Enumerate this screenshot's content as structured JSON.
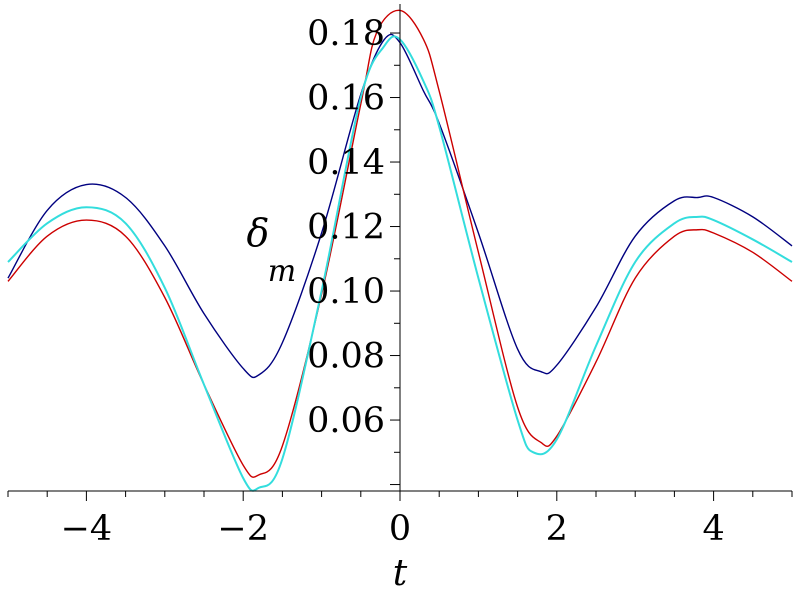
{
  "chart_data": {
    "type": "line",
    "title": "",
    "xlabel": "t",
    "ylabel_symbol": "δ",
    "ylabel_subscript": "m",
    "xlim": [
      -5,
      5
    ],
    "ylim": [
      0.038,
      0.189
    ],
    "x_ticks": [
      -4,
      -2,
      0,
      2,
      4
    ],
    "x_tick_labels": [
      "−4",
      "−2",
      "0",
      "2",
      "4"
    ],
    "y_ticks": [
      0.06,
      0.08,
      0.1,
      0.12,
      0.14,
      0.16,
      0.18
    ],
    "y_tick_labels": [
      "0.06",
      "0.08",
      "0.10",
      "0.12",
      "0.14",
      "0.16",
      "0.18"
    ],
    "grid": false,
    "legend": "none",
    "series": [
      {
        "color": "#000080",
        "points": [
          [
            -5,
            0.104
          ],
          [
            -4.5,
            0.125
          ],
          [
            -4,
            0.133
          ],
          [
            -3.5,
            0.129
          ],
          [
            -3,
            0.114
          ],
          [
            -2.5,
            0.093
          ],
          [
            -2,
            0.076
          ],
          [
            -1.8,
            0.074
          ],
          [
            -1.5,
            0.084
          ],
          [
            -1,
            0.118
          ],
          [
            -0.5,
            0.161
          ],
          [
            -0.2,
            0.178
          ],
          [
            0,
            0.177
          ],
          [
            0.3,
            0.162
          ],
          [
            0.5,
            0.152
          ],
          [
            1,
            0.118
          ],
          [
            1.5,
            0.082
          ],
          [
            1.8,
            0.075
          ],
          [
            2,
            0.077
          ],
          [
            2.5,
            0.095
          ],
          [
            3,
            0.117
          ],
          [
            3.5,
            0.128
          ],
          [
            3.8,
            0.129
          ],
          [
            4,
            0.129
          ],
          [
            4.5,
            0.123
          ],
          [
            5,
            0.114
          ]
        ]
      },
      {
        "color": "#cc0000",
        "points": [
          [
            -5,
            0.103
          ],
          [
            -4.5,
            0.117
          ],
          [
            -4,
            0.122
          ],
          [
            -3.5,
            0.117
          ],
          [
            -3,
            0.098
          ],
          [
            -2.5,
            0.071
          ],
          [
            -2,
            0.046
          ],
          [
            -1.8,
            0.043
          ],
          [
            -1.5,
            0.052
          ],
          [
            -1,
            0.099
          ],
          [
            -0.5,
            0.158
          ],
          [
            -0.3,
            0.18
          ],
          [
            0,
            0.187
          ],
          [
            0.3,
            0.178
          ],
          [
            0.5,
            0.162
          ],
          [
            1,
            0.112
          ],
          [
            1.5,
            0.064
          ],
          [
            1.8,
            0.053
          ],
          [
            2,
            0.055
          ],
          [
            2.5,
            0.078
          ],
          [
            3,
            0.104
          ],
          [
            3.5,
            0.117
          ],
          [
            3.8,
            0.119
          ],
          [
            4,
            0.118
          ],
          [
            4.5,
            0.112
          ],
          [
            5,
            0.103
          ]
        ]
      },
      {
        "color": "#33dddd",
        "points": [
          [
            -5,
            0.109
          ],
          [
            -4.5,
            0.121
          ],
          [
            -4,
            0.126
          ],
          [
            -3.5,
            0.121
          ],
          [
            -3,
            0.101
          ],
          [
            -2.5,
            0.071
          ],
          [
            -2,
            0.042
          ],
          [
            -1.8,
            0.039
          ],
          [
            -1.5,
            0.048
          ],
          [
            -1,
            0.1
          ],
          [
            -0.5,
            0.16
          ],
          [
            -0.2,
            0.176
          ],
          [
            0,
            0.178
          ],
          [
            0.3,
            0.165
          ],
          [
            0.5,
            0.151
          ],
          [
            1,
            0.104
          ],
          [
            1.5,
            0.06
          ],
          [
            1.7,
            0.05
          ],
          [
            2,
            0.054
          ],
          [
            2.5,
            0.083
          ],
          [
            3,
            0.109
          ],
          [
            3.5,
            0.121
          ],
          [
            3.8,
            0.123
          ],
          [
            4,
            0.122
          ],
          [
            4.5,
            0.116
          ],
          [
            5,
            0.109
          ]
        ]
      }
    ]
  }
}
